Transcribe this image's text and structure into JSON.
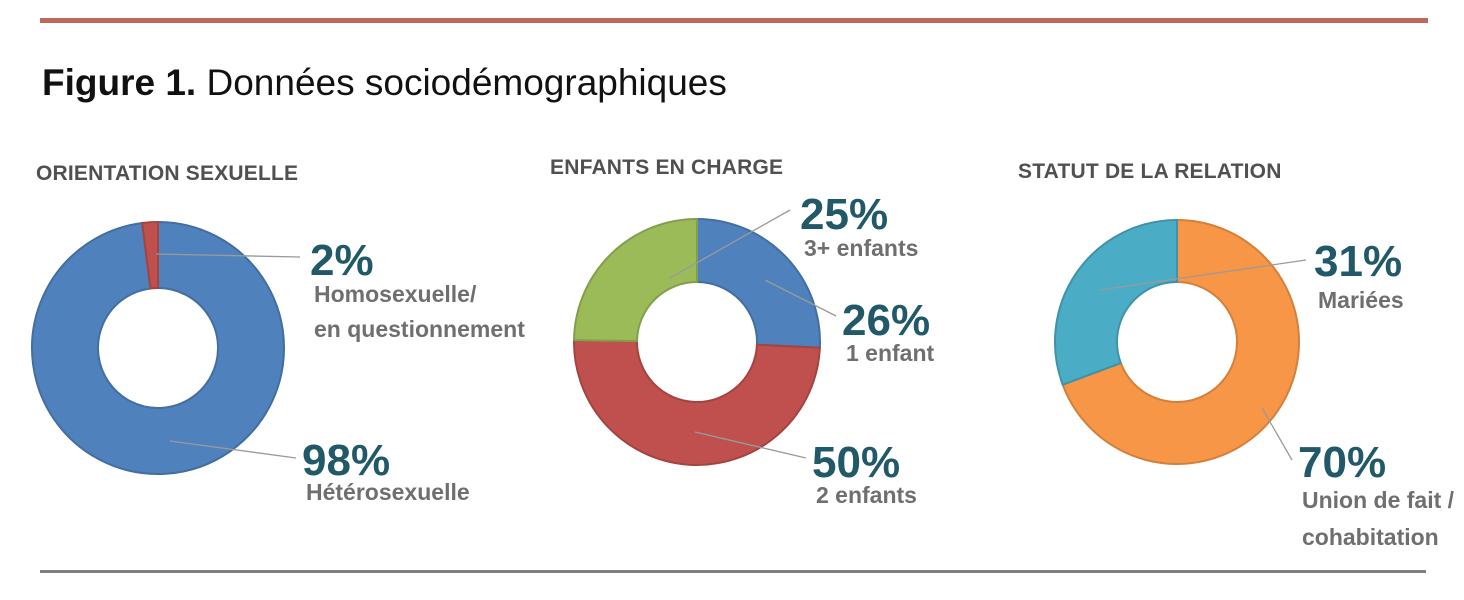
{
  "figure": {
    "label": "Figure 1.",
    "title": "Données sociodémographiques"
  },
  "chart_data": [
    {
      "type": "pie",
      "title": "ORIENTATION SEXUELLE",
      "categories": [
        "Hétérosexuelle",
        "Homosexuelle/ en questionnement"
      ],
      "values": [
        98,
        2
      ],
      "value_labels": [
        "98%",
        "2%"
      ],
      "label_lines": [
        [
          "Hétérosexuelle"
        ],
        [
          "Homosexuelle/",
          "en questionnement"
        ]
      ],
      "colors": [
        "#4f81bd",
        "#c0504d"
      ],
      "donut": true
    },
    {
      "type": "pie",
      "title": "ENFANTS EN CHARGE",
      "categories": [
        "1 enfant",
        "2 enfants",
        "3+ enfants"
      ],
      "values": [
        26,
        50,
        25
      ],
      "value_labels": [
        "26%",
        "50%",
        "25%"
      ],
      "label_lines": [
        [
          "1 enfant"
        ],
        [
          "2 enfants"
        ],
        [
          "3+ enfants"
        ]
      ],
      "colors": [
        "#4f81bd",
        "#c0504d",
        "#9bbb59"
      ],
      "donut": true
    },
    {
      "type": "pie",
      "title": "STATUT DE LA RELATION",
      "categories": [
        "Union de fait / cohabitation",
        "Mariées"
      ],
      "values": [
        70,
        31
      ],
      "value_labels": [
        "70%",
        "31%"
      ],
      "label_lines": [
        [
          "Union de fait /",
          "cohabitation"
        ],
        [
          "Mariées"
        ]
      ],
      "colors": [
        "#f79646",
        "#4bacc6"
      ],
      "donut": true
    }
  ]
}
